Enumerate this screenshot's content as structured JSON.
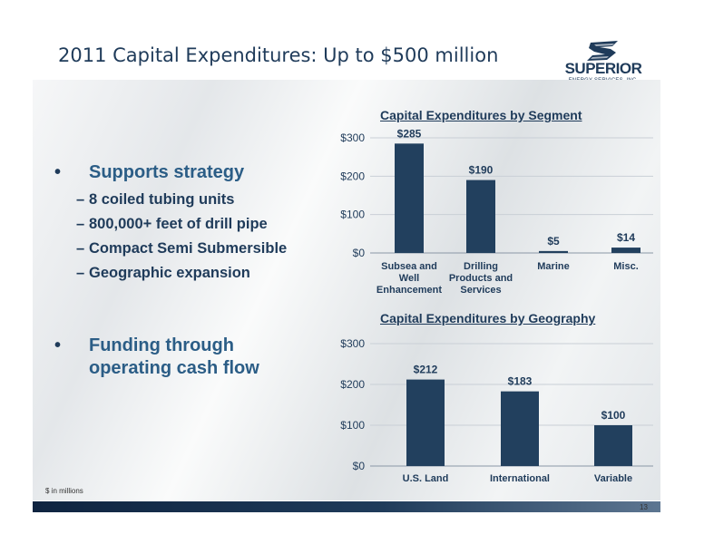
{
  "title": "2011 Capital Expenditures: Up to $500 million",
  "logo": {
    "name": "SUPERIOR",
    "subtitle": "ENERGY SERVICES, INC."
  },
  "bullets": [
    {
      "text": "Supports strategy",
      "sub": [
        "8 coiled tubing units",
        "800,000+ feet of drill pipe",
        "Compact Semi Submersible",
        "Geographic expansion"
      ]
    },
    {
      "text": "Funding through operating cash flow",
      "lines": [
        "Funding through",
        "operating cash flow"
      ],
      "sub": []
    }
  ],
  "bullet_symbol": "•",
  "sub_symbol": "–",
  "footnote": "$ in millions",
  "page_number": "13",
  "colors": {
    "accent": "#1f3b5a",
    "bar": "#22405e",
    "bullet_text": "#2b5d86"
  },
  "chart_data": [
    {
      "type": "bar",
      "title": "Capital Expenditures by Segment",
      "categories": [
        [
          "Subsea and",
          "Well",
          "Enhancement"
        ],
        [
          "Drilling",
          "Products and",
          "Services"
        ],
        [
          "Marine"
        ],
        [
          "Misc."
        ]
      ],
      "values": [
        285,
        190,
        5,
        14
      ],
      "data_labels": [
        "$285",
        "$190",
        "$5",
        "$14"
      ],
      "yticks": [
        "$0",
        "$100",
        "$200",
        "$300"
      ],
      "ylim": [
        0,
        300
      ],
      "xlabel": "",
      "ylabel": "",
      "grid": true
    },
    {
      "type": "bar",
      "title": "Capital Expenditures by Geography",
      "categories": [
        [
          "U.S. Land"
        ],
        [
          "International"
        ],
        [
          "Variable"
        ]
      ],
      "values": [
        212,
        183,
        100
      ],
      "data_labels": [
        "$212",
        "$183",
        "$100"
      ],
      "yticks": [
        "$0",
        "$100",
        "$200",
        "$300"
      ],
      "ylim": [
        0,
        300
      ],
      "xlabel": "",
      "ylabel": "",
      "grid": true
    }
  ]
}
